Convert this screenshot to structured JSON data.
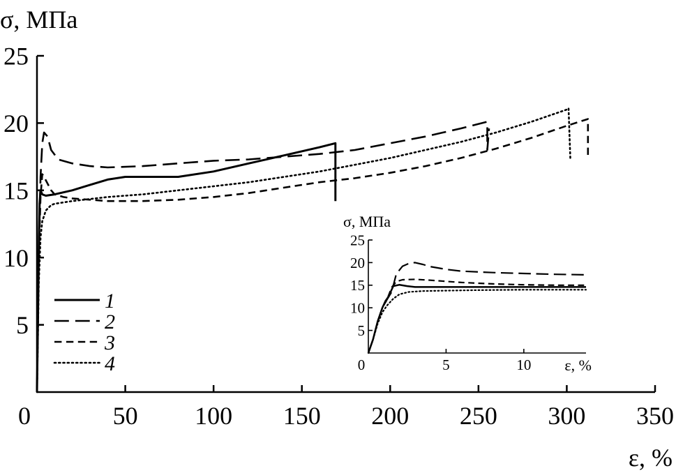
{
  "chart_data": [
    {
      "type": "line",
      "title": "",
      "xlabel": "ε, %",
      "ylabel": "σ, МПа",
      "xlim": [
        0,
        350
      ],
      "ylim": [
        0,
        25
      ],
      "xticks": [
        "0",
        "50",
        "100",
        "150",
        "200",
        "250",
        "300",
        "350"
      ],
      "yticks": [
        "5",
        "10",
        "15",
        "20",
        "25"
      ],
      "grid": false,
      "legend_position": "bottom-left",
      "series": [
        {
          "name": "1",
          "style": "solid",
          "x": [
            0,
            0.5,
            1,
            1.5,
            2,
            3,
            5,
            10,
            20,
            30,
            40,
            50,
            60,
            80,
            100,
            120,
            140,
            160,
            169,
            169
          ],
          "y": [
            0,
            5,
            10,
            14,
            15,
            14.7,
            14.6,
            14.7,
            15.0,
            15.4,
            15.8,
            16.0,
            16.0,
            16.0,
            16.4,
            17.0,
            17.6,
            18.2,
            18.5,
            14.2
          ]
        },
        {
          "name": "2",
          "style": "long-dash",
          "x": [
            0,
            1,
            2,
            3,
            4,
            6,
            8,
            12,
            20,
            30,
            40,
            60,
            80,
            100,
            120,
            140,
            160,
            180,
            200,
            220,
            240,
            255,
            255,
            256
          ],
          "y": [
            0,
            10,
            16,
            18.5,
            19.3,
            19.0,
            18.0,
            17.3,
            17.0,
            16.8,
            16.7,
            16.8,
            17.0,
            17.2,
            17.3,
            17.5,
            17.7,
            18.0,
            18.5,
            19.0,
            19.6,
            20.1,
            18.0,
            19.6
          ]
        },
        {
          "name": "3",
          "style": "short-dash",
          "x": [
            0,
            1,
            2,
            3,
            4,
            6,
            8,
            10,
            15,
            20,
            40,
            60,
            80,
            100,
            120,
            140,
            160,
            180,
            200,
            220,
            240,
            260,
            280,
            300,
            312,
            312
          ],
          "y": [
            0,
            10,
            14.5,
            16.2,
            16.0,
            15.5,
            15.0,
            14.7,
            14.5,
            14.4,
            14.2,
            14.2,
            14.3,
            14.5,
            14.8,
            15.2,
            15.6,
            15.9,
            16.3,
            16.8,
            17.4,
            18.1,
            18.9,
            19.8,
            20.3,
            17.6
          ]
        },
        {
          "name": "4",
          "style": "dotted",
          "x": [
            0,
            1,
            2,
            3,
            5,
            8,
            10,
            20,
            40,
            60,
            80,
            100,
            120,
            140,
            160,
            180,
            200,
            220,
            240,
            260,
            280,
            300,
            301,
            302
          ],
          "y": [
            0,
            8,
            11.5,
            12.7,
            13.5,
            13.9,
            14.0,
            14.2,
            14.5,
            14.7,
            15.0,
            15.3,
            15.6,
            16.0,
            16.4,
            16.9,
            17.4,
            18.0,
            18.6,
            19.3,
            20.1,
            21.0,
            21.1,
            17.4
          ]
        }
      ]
    },
    {
      "type": "line",
      "title": "",
      "xlabel": "ε, %",
      "ylabel": "σ, МПа",
      "xlim": [
        0,
        14
      ],
      "ylim": [
        0,
        25
      ],
      "xticks": [
        "0",
        "5",
        "10"
      ],
      "yticks": [
        "5",
        "10",
        "15",
        "20",
        "25"
      ],
      "grid": false,
      "series": [
        {
          "name": "1",
          "style": "solid",
          "x": [
            0,
            0.3,
            0.6,
            0.9,
            1.1,
            1.3,
            1.6,
            2.0,
            2.5,
            3.0,
            4,
            6,
            8,
            10,
            12,
            14
          ],
          "y": [
            0,
            3,
            7,
            10,
            11.5,
            12.5,
            14.8,
            15.1,
            14.8,
            14.6,
            14.6,
            14.6,
            14.6,
            14.6,
            14.6,
            14.6
          ]
        },
        {
          "name": "2",
          "style": "long-dash",
          "x": [
            0,
            0.3,
            0.6,
            0.9,
            1.2,
            1.5,
            1.8,
            2.2,
            2.6,
            3.0,
            3.5,
            4,
            5,
            6,
            8,
            10,
            12,
            14
          ],
          "y": [
            0,
            3,
            7,
            10,
            11.8,
            13.5,
            17.5,
            19.2,
            19.8,
            20.0,
            19.6,
            19.1,
            18.5,
            18.1,
            17.8,
            17.6,
            17.4,
            17.3
          ]
        },
        {
          "name": "3",
          "style": "short-dash",
          "x": [
            0,
            0.3,
            0.6,
            0.9,
            1.2,
            1.5,
            1.8,
            2.2,
            3.0,
            4,
            6,
            8,
            10,
            12,
            14
          ],
          "y": [
            0,
            3,
            7,
            10,
            11.8,
            14.5,
            15.8,
            16.2,
            16.3,
            16.1,
            15.6,
            15.3,
            15.1,
            15.0,
            15.0
          ]
        },
        {
          "name": "4",
          "style": "dotted",
          "x": [
            0,
            0.3,
            0.6,
            0.9,
            1.2,
            1.6,
            2.0,
            2.6,
            3.5,
            5,
            7,
            10,
            12,
            14
          ],
          "y": [
            0,
            3,
            6.5,
            9,
            10.5,
            12.0,
            13.0,
            13.5,
            13.7,
            13.8,
            13.9,
            14.0,
            14.0,
            14.0
          ]
        }
      ]
    }
  ]
}
